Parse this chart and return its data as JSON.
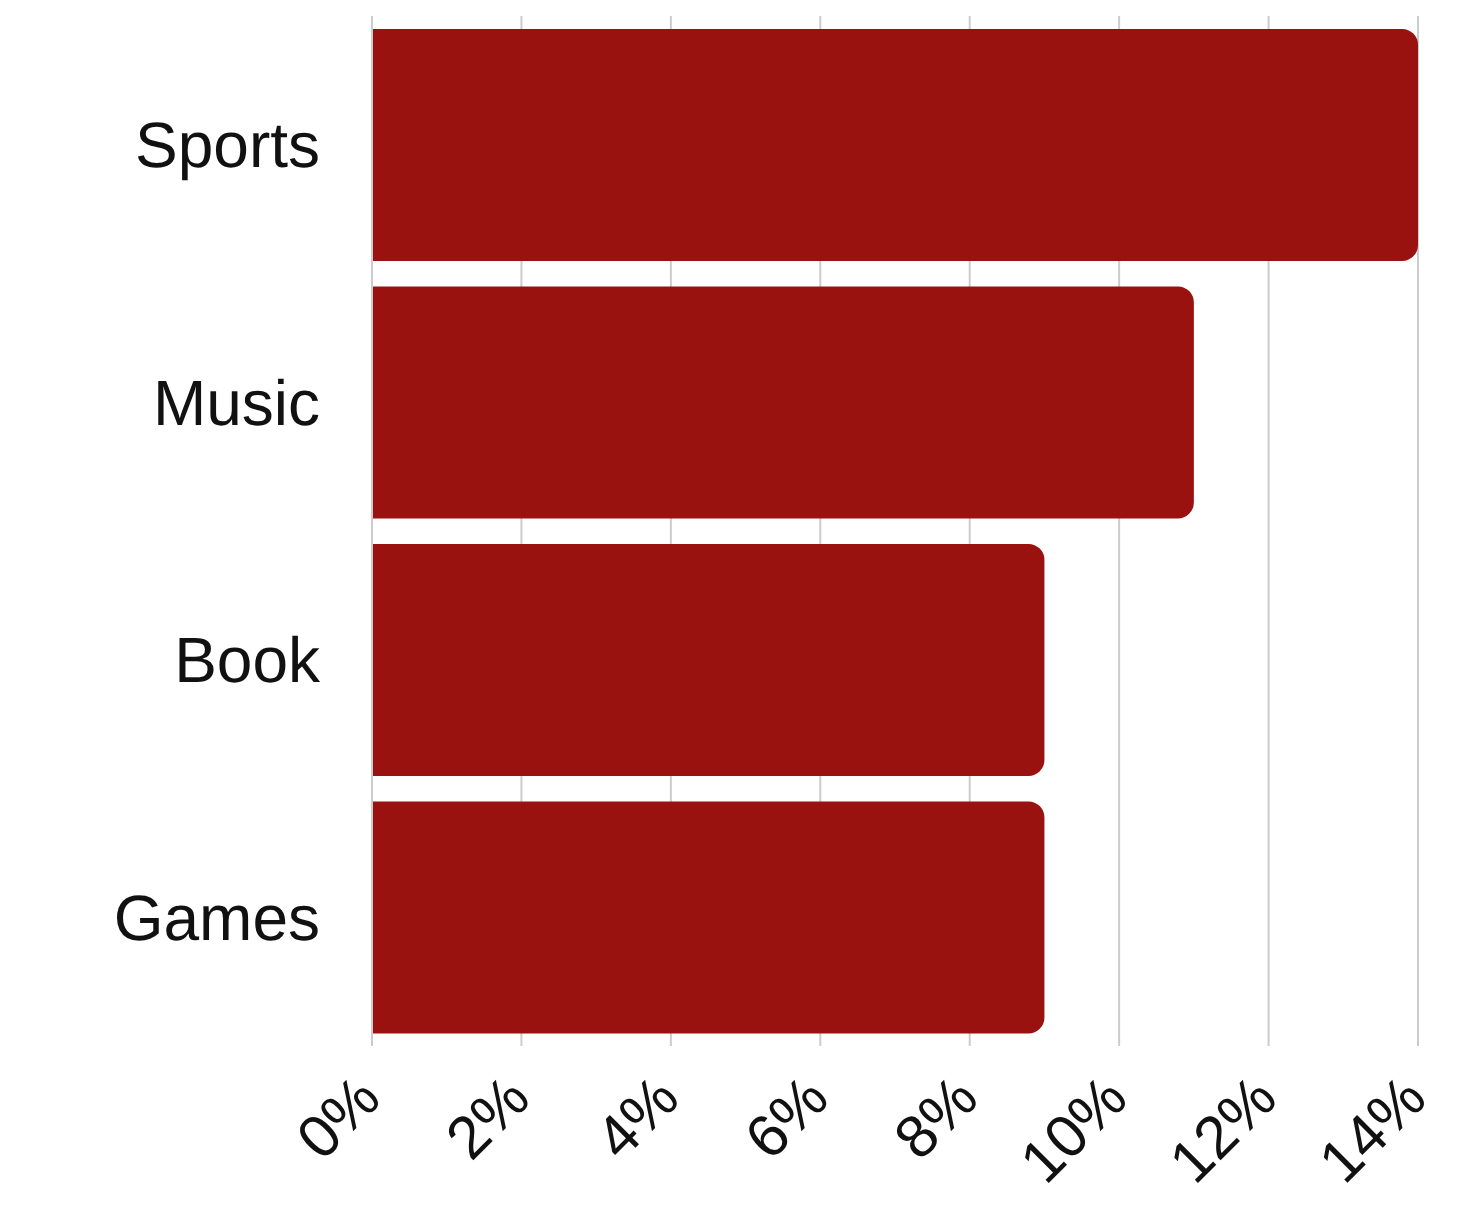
{
  "chart_data": {
    "type": "bar",
    "orientation": "horizontal",
    "categories": [
      "Sports",
      "Music",
      "Book",
      "Games"
    ],
    "values": [
      14,
      11,
      9,
      9
    ],
    "color": "#99120f",
    "xlim": [
      0,
      14
    ],
    "xticks": [
      {
        "value": 0,
        "label": "0%"
      },
      {
        "value": 2,
        "label": "2%"
      },
      {
        "value": 4,
        "label": "4%"
      },
      {
        "value": 6,
        "label": "6%"
      },
      {
        "value": 8,
        "label": "8%"
      },
      {
        "value": 10,
        "label": "10%"
      },
      {
        "value": 12,
        "label": "12%"
      },
      {
        "value": 14,
        "label": "14%"
      }
    ],
    "grid": "x",
    "legend": false
  }
}
